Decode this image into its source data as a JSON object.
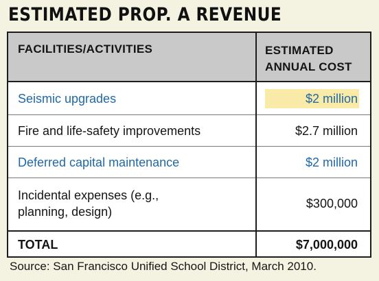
{
  "title": "ESTIMATED PROP. A REVENUE",
  "table": {
    "headers": {
      "left": "FACILITIES/ACTIVITIES",
      "right_line1": "ESTIMATED",
      "right_line2": "ANNUAL COST"
    },
    "rows": [
      {
        "label": "Seismic upgrades",
        "value": "$2 million",
        "color": "#1f68a6",
        "highlight_color": "#faeaa8"
      },
      {
        "label": "Fire and life-safety improvements",
        "value": "$2.7 million",
        "color": "#141414"
      },
      {
        "label": "Deferred capital maintenance",
        "value": "$2 million",
        "color": "#1f68a6"
      },
      {
        "label_line1": "Incidental expenses (e.g.,",
        "label_line2": "planning, design)",
        "value": "$300,000",
        "color": "#141414"
      },
      {
        "label": "TOTAL",
        "value": "$7,000,000",
        "color": "#141414"
      }
    ]
  },
  "source": "Source: San Francisco Unified School District, March 2010."
}
